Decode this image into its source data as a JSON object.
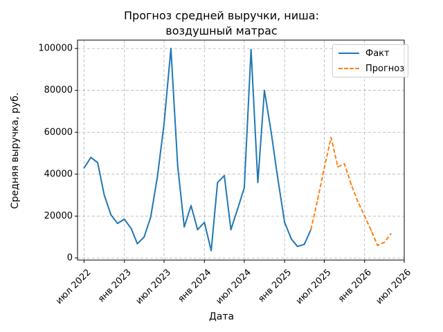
{
  "chart_data": {
    "type": "line",
    "title_lines": [
      "Прогноз средней выручки, ниша:",
      "воздушный матрас"
    ],
    "xlabel": "Дата",
    "ylabel": "Средняя выручка, руб.",
    "x_ticks": [
      "2022-07-01",
      "2023-01-01",
      "2023-07-01",
      "2024-01-01",
      "2024-07-01",
      "2025-01-01",
      "2025-07-01",
      "2026-01-01",
      "2026-07-01"
    ],
    "x_tick_labels": [
      "июл 2022",
      "янв 2023",
      "июл 2023",
      "янв 2024",
      "июл 2024",
      "янв 2025",
      "июл 2025",
      "янв 2026",
      "июл 2026"
    ],
    "y_ticks": [
      0,
      20000,
      40000,
      60000,
      80000,
      100000
    ],
    "y_tick_labels": [
      "0",
      "20000",
      "40000",
      "60000",
      "80000",
      "100000"
    ],
    "xlim": [
      "2022-06-01",
      "2026-07-01"
    ],
    "ylim": [
      -1000,
      104000
    ],
    "grid": true,
    "legend_position": "top-right",
    "series": [
      {
        "name": "Факт",
        "color": "#1f77b4",
        "style": "solid",
        "x": [
          "2022-07-01",
          "2022-08-01",
          "2022-09-01",
          "2022-10-01",
          "2022-11-01",
          "2022-12-01",
          "2023-01-01",
          "2023-02-01",
          "2023-03-01",
          "2023-04-01",
          "2023-05-01",
          "2023-06-01",
          "2023-07-01",
          "2023-08-01",
          "2023-09-01",
          "2023-10-01",
          "2023-11-01",
          "2023-12-01",
          "2024-01-01",
          "2024-02-01",
          "2024-03-01",
          "2024-04-01",
          "2024-05-01",
          "2024-06-01",
          "2024-07-01",
          "2024-08-01",
          "2024-09-01",
          "2024-10-01",
          "2024-11-01",
          "2024-12-01",
          "2025-01-01",
          "2025-02-01",
          "2025-03-01",
          "2025-04-01",
          "2025-05-01"
        ],
        "y": [
          43000,
          48000,
          45500,
          30000,
          20500,
          16500,
          18500,
          14000,
          6800,
          10000,
          19500,
          39000,
          64000,
          100000,
          44000,
          14800,
          25000,
          13500,
          17000,
          3500,
          36000,
          39300,
          13500,
          23500,
          33500,
          99500,
          36000,
          80000,
          60000,
          38000,
          17000,
          9000,
          5500,
          6500,
          13500
        ]
      },
      {
        "name": "Прогноз",
        "color": "#ff7f0e",
        "style": "dashed",
        "x": [
          "2025-05-01",
          "2025-06-01",
          "2025-07-01",
          "2025-08-01",
          "2025-09-01",
          "2025-10-01",
          "2025-11-01",
          "2025-12-01",
          "2026-01-01",
          "2026-02-01",
          "2026-03-01",
          "2026-04-01",
          "2026-05-01"
        ],
        "y": [
          13500,
          28000,
          43000,
          57500,
          43500,
          45000,
          35000,
          27000,
          20000,
          13000,
          6000,
          7500,
          11500
        ]
      }
    ]
  }
}
